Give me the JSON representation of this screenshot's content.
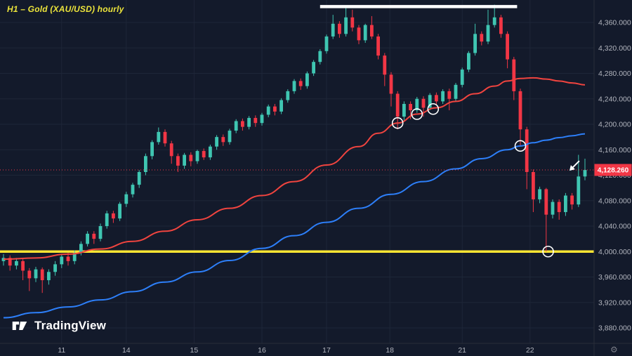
{
  "meta": {
    "title": "H1 – Gold (XAU/USD) hourly"
  },
  "watermark": {
    "label": "TradingView"
  },
  "price_label": {
    "value": "4,128.260"
  },
  "colors": {
    "background": "#131a2b",
    "grid": "#1e2638",
    "axis_text": "#b2b5be",
    "up": "#3fc6b2",
    "down": "#f23645",
    "red_ma": "#f0443f",
    "blue_ma": "#2d7ff9",
    "support": "#ffe633",
    "resistance": "#ffffff",
    "price_label_bg": "#f23645",
    "title": "#ece43b",
    "marker": "#ffffff"
  },
  "chart_data": {
    "type": "candlestick",
    "symbol": "Gold (XAU/USD)",
    "timeframe": "H1",
    "title": "H1 – Gold (XAU/USD) hourly",
    "last_price": 4128.26,
    "y_ticks": [
      "4,360.000",
      "4,320.000",
      "4,280.000",
      "4,240.000",
      "4,200.000",
      "4,160.000",
      "4,120.000",
      "4,080.000",
      "4,040.000",
      "4,000.000",
      "3,960.000",
      "3,920.000",
      "3,880.000"
    ],
    "y_range": {
      "top": 4395,
      "bottom": 3860
    },
    "x_ticks": [
      {
        "label": "11",
        "index": 9
      },
      {
        "label": "14",
        "index": 19
      },
      {
        "label": "15",
        "index": 29.5
      },
      {
        "label": "16",
        "index": 40
      },
      {
        "label": "17",
        "index": 50
      },
      {
        "label": "18",
        "index": 59.8
      },
      {
        "label": "21",
        "index": 71
      },
      {
        "label": "22",
        "index": 81.5
      }
    ],
    "candles": [
      [
        3985,
        3996,
        3978,
        3990
      ],
      [
        3990,
        3994,
        3970,
        3978
      ],
      [
        3978,
        3990,
        3972,
        3985
      ],
      [
        3985,
        3988,
        3955,
        3970
      ],
      [
        3970,
        3974,
        3938,
        3958
      ],
      [
        3958,
        3976,
        3952,
        3972
      ],
      [
        3972,
        3975,
        3935,
        3955
      ],
      [
        3955,
        3972,
        3948,
        3968
      ],
      [
        3968,
        3985,
        3962,
        3980
      ],
      [
        3980,
        3996,
        3974,
        3992
      ],
      [
        3992,
        3998,
        3978,
        3985
      ],
      [
        3985,
        4002,
        3980,
        3998
      ],
      [
        3998,
        4016,
        3994,
        4012
      ],
      [
        4012,
        4032,
        4008,
        4028
      ],
      [
        4028,
        4032,
        4012,
        4020
      ],
      [
        4020,
        4044,
        4016,
        4040
      ],
      [
        4040,
        4064,
        4036,
        4060
      ],
      [
        4060,
        4064,
        4045,
        4052
      ],
      [
        4052,
        4078,
        4048,
        4075
      ],
      [
        4075,
        4094,
        4070,
        4090
      ],
      [
        4090,
        4108,
        4085,
        4105
      ],
      [
        4105,
        4128,
        4100,
        4125
      ],
      [
        4125,
        4154,
        4120,
        4150
      ],
      [
        4150,
        4175,
        4145,
        4172
      ],
      [
        4172,
        4195,
        4168,
        4188
      ],
      [
        4188,
        4192,
        4165,
        4170
      ],
      [
        4170,
        4174,
        4138,
        4150
      ],
      [
        4150,
        4154,
        4125,
        4135
      ],
      [
        4135,
        4155,
        4130,
        4152
      ],
      [
        4152,
        4156,
        4134,
        4142
      ],
      [
        4142,
        4160,
        4138,
        4158
      ],
      [
        4158,
        4162,
        4144,
        4148
      ],
      [
        4148,
        4168,
        4144,
        4165
      ],
      [
        4165,
        4183,
        4160,
        4180
      ],
      [
        4180,
        4184,
        4166,
        4172
      ],
      [
        4172,
        4193,
        4168,
        4190
      ],
      [
        4190,
        4208,
        4186,
        4205
      ],
      [
        4205,
        4209,
        4190,
        4196
      ],
      [
        4196,
        4213,
        4192,
        4210
      ],
      [
        4210,
        4214,
        4196,
        4202
      ],
      [
        4202,
        4218,
        4198,
        4215
      ],
      [
        4215,
        4231,
        4211,
        4228
      ],
      [
        4228,
        4232,
        4214,
        4220
      ],
      [
        4220,
        4241,
        4216,
        4238
      ],
      [
        4238,
        4255,
        4234,
        4252
      ],
      [
        4252,
        4271,
        4248,
        4268
      ],
      [
        4268,
        4272,
        4254,
        4260
      ],
      [
        4260,
        4283,
        4256,
        4280
      ],
      [
        4280,
        4301,
        4276,
        4298
      ],
      [
        4298,
        4318,
        4294,
        4315
      ],
      [
        4315,
        4341,
        4311,
        4338
      ],
      [
        4338,
        4372,
        4334,
        4358
      ],
      [
        4358,
        4362,
        4336,
        4342
      ],
      [
        4342,
        4385,
        4338,
        4368
      ],
      [
        4368,
        4380,
        4346,
        4352
      ],
      [
        4352,
        4356,
        4326,
        4332
      ],
      [
        4332,
        4358,
        4328,
        4356
      ],
      [
        4356,
        4370,
        4334,
        4338
      ],
      [
        4338,
        4342,
        4302,
        4308
      ],
      [
        4308,
        4312,
        4260,
        4278
      ],
      [
        4278,
        4282,
        4228,
        4248
      ],
      [
        4248,
        4252,
        4192,
        4212
      ],
      [
        4212,
        4236,
        4206,
        4232
      ],
      [
        4232,
        4236,
        4208,
        4222
      ],
      [
        4222,
        4243,
        4218,
        4240
      ],
      [
        4240,
        4244,
        4212,
        4226
      ],
      [
        4226,
        4249,
        4222,
        4246
      ],
      [
        4246,
        4250,
        4230,
        4236
      ],
      [
        4236,
        4255,
        4232,
        4252
      ],
      [
        4252,
        4256,
        4222,
        4240
      ],
      [
        4240,
        4265,
        4236,
        4262
      ],
      [
        4262,
        4289,
        4258,
        4286
      ],
      [
        4286,
        4315,
        4282,
        4312
      ],
      [
        4312,
        4358,
        4308,
        4342
      ],
      [
        4342,
        4346,
        4324,
        4330
      ],
      [
        4330,
        4380,
        4326,
        4356
      ],
      [
        4356,
        4388,
        4352,
        4368
      ],
      [
        4368,
        4372,
        4336,
        4342
      ],
      [
        4342,
        4346,
        4288,
        4302
      ],
      [
        4302,
        4306,
        4238,
        4252
      ],
      [
        4252,
        4256,
        4165,
        4192
      ],
      [
        4192,
        4196,
        4098,
        4125
      ],
      [
        4125,
        4129,
        4062,
        4082
      ],
      [
        4082,
        4102,
        4076,
        4098
      ],
      [
        4098,
        4100,
        4000,
        4058
      ],
      [
        4058,
        4082,
        4052,
        4078
      ],
      [
        4078,
        4082,
        4050,
        4062
      ],
      [
        4062,
        4092,
        4056,
        4088
      ],
      [
        4088,
        4092,
        4066,
        4074
      ],
      [
        4074,
        4152,
        4070,
        4118
      ],
      [
        4118,
        4146,
        4112,
        4128.26
      ]
    ],
    "overlays": {
      "red_ma": [
        [
          0,
          3988
        ],
        [
          5,
          3990
        ],
        [
          10,
          3996
        ],
        [
          15,
          4004
        ],
        [
          20,
          4016
        ],
        [
          25,
          4032
        ],
        [
          30,
          4050
        ],
        [
          35,
          4068
        ],
        [
          40,
          4088
        ],
        [
          45,
          4110
        ],
        [
          50,
          4136
        ],
        [
          55,
          4165
        ],
        [
          58,
          4186
        ],
        [
          61,
          4202
        ],
        [
          64,
          4216
        ],
        [
          67,
          4226
        ],
        [
          70,
          4236
        ],
        [
          73,
          4248
        ],
        [
          76,
          4260
        ],
        [
          78,
          4268
        ],
        [
          80,
          4272
        ],
        [
          82,
          4273
        ],
        [
          84,
          4271
        ],
        [
          86,
          4268
        ],
        [
          88,
          4265
        ],
        [
          90,
          4262
        ]
      ],
      "blue_ma": [
        [
          0,
          3896
        ],
        [
          5,
          3904
        ],
        [
          10,
          3913
        ],
        [
          15,
          3924
        ],
        [
          20,
          3937
        ],
        [
          25,
          3952
        ],
        [
          30,
          3968
        ],
        [
          35,
          3986
        ],
        [
          40,
          4005
        ],
        [
          45,
          4025
        ],
        [
          50,
          4046
        ],
        [
          55,
          4068
        ],
        [
          60,
          4090
        ],
        [
          65,
          4110
        ],
        [
          70,
          4130
        ],
        [
          74,
          4146
        ],
        [
          78,
          4160
        ],
        [
          80,
          4166
        ],
        [
          82,
          4171
        ],
        [
          84,
          4175
        ],
        [
          86,
          4179
        ],
        [
          88,
          4182
        ],
        [
          90,
          4185
        ]
      ],
      "support_line": {
        "price": 4000
      },
      "resistance_line": {
        "from_index": 49,
        "to_index": 79.5,
        "price": 4385
      },
      "circles": [
        [
          61,
          4202
        ],
        [
          64,
          4216
        ],
        [
          66.5,
          4224
        ],
        [
          80,
          4166
        ],
        [
          84.3,
          4000
        ]
      ],
      "arrow": {
        "index": 87.6,
        "price": 4127
      }
    }
  }
}
